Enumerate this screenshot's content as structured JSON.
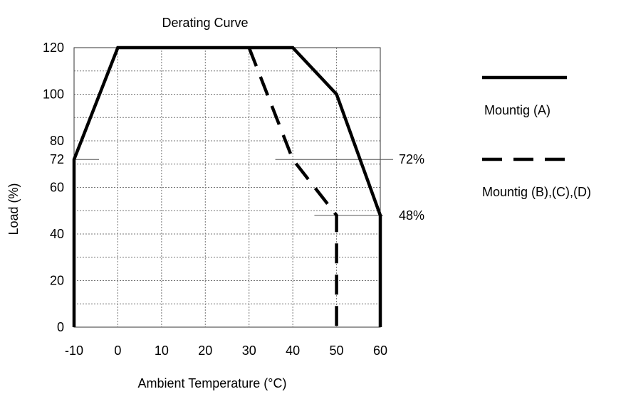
{
  "chart_data": {
    "type": "line",
    "title": "Derating Curve",
    "xlabel": "Ambient  Temperature (°C)",
    "ylabel": "Load (%)",
    "xlim": [
      -10,
      60
    ],
    "ylim": [
      0,
      120
    ],
    "x_ticks": [
      -10,
      0,
      10,
      20,
      30,
      40,
      50,
      60
    ],
    "y_ticks": [
      0,
      20,
      40,
      60,
      72,
      80,
      100,
      120
    ],
    "grid": true,
    "legend_position": "right",
    "series": [
      {
        "name": "Mountig (A)",
        "style": "solid",
        "color": "#000000",
        "points": [
          [
            -10,
            0
          ],
          [
            -10,
            72
          ],
          [
            0,
            120
          ],
          [
            40,
            120
          ],
          [
            50,
            100
          ],
          [
            60,
            48
          ],
          [
            60,
            0
          ]
        ]
      },
      {
        "name": "Mountig (B),(C),(D)",
        "style": "dashed",
        "color": "#000000",
        "points": [
          [
            30,
            120
          ],
          [
            40,
            72
          ],
          [
            50,
            48
          ],
          [
            50,
            0
          ]
        ]
      }
    ],
    "annotations": [
      {
        "text": "72%",
        "x": 40,
        "y": 72
      },
      {
        "text": "48%",
        "x": 60,
        "y": 48
      }
    ]
  }
}
